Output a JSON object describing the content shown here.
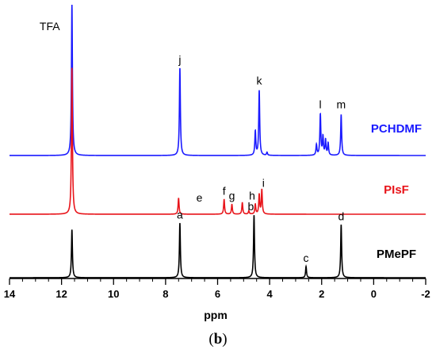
{
  "chart_data": {
    "type": "line",
    "xlabel": "ppm",
    "xlim": [
      14,
      -2
    ],
    "x_ticks": [
      14,
      12,
      10,
      8,
      6,
      4,
      2,
      0,
      -2
    ],
    "y_axis_visible": false,
    "grid": false,
    "series": [
      {
        "name": "PCHDMF",
        "color": "#1a1aff",
        "peaks": [
          {
            "ppm": 11.6,
            "height": 1.0,
            "label": "TFA"
          },
          {
            "ppm": 7.45,
            "height": 0.58,
            "label": "j"
          },
          {
            "ppm": 4.55,
            "height": 0.16,
            "label": ""
          },
          {
            "ppm": 4.4,
            "height": 0.43,
            "label": "k"
          },
          {
            "ppm": 4.1,
            "height": 0.02,
            "label": ""
          },
          {
            "ppm": 2.2,
            "height": 0.07,
            "label": ""
          },
          {
            "ppm": 2.05,
            "height": 0.27,
            "label": "l"
          },
          {
            "ppm": 1.95,
            "height": 0.12,
            "label": ""
          },
          {
            "ppm": 1.85,
            "height": 0.1,
            "label": ""
          },
          {
            "ppm": 1.75,
            "height": 0.08,
            "label": ""
          },
          {
            "ppm": 1.25,
            "height": 0.27,
            "label": "m"
          }
        ]
      },
      {
        "name": "PIsF",
        "color": "#e8141a",
        "peaks": [
          {
            "ppm": 11.6,
            "height": 0.9,
            "label": ""
          },
          {
            "ppm": 7.5,
            "height": 0.1,
            "label": ""
          },
          {
            "ppm": 6.7,
            "height": 0.0,
            "label": "e"
          },
          {
            "ppm": 5.75,
            "height": 0.09,
            "label": "f"
          },
          {
            "ppm": 5.45,
            "height": 0.06,
            "label": "g"
          },
          {
            "ppm": 5.05,
            "height": 0.07,
            "label": ""
          },
          {
            "ppm": 4.8,
            "height": 0.02,
            "label": ""
          },
          {
            "ppm": 4.55,
            "height": 0.06,
            "label": "h"
          },
          {
            "ppm": 4.4,
            "height": 0.12,
            "label": ""
          },
          {
            "ppm": 4.3,
            "height": 0.15,
            "label": "i"
          }
        ]
      },
      {
        "name": "PMePF",
        "color": "#000000",
        "peaks": [
          {
            "ppm": 11.6,
            "height": 0.3,
            "label": ""
          },
          {
            "ppm": 7.45,
            "height": 0.34,
            "label": "a"
          },
          {
            "ppm": 4.6,
            "height": 0.39,
            "label": "b"
          },
          {
            "ppm": 2.6,
            "height": 0.07,
            "label": "c"
          },
          {
            "ppm": 1.25,
            "height": 0.33,
            "label": "d"
          }
        ]
      }
    ],
    "caption_letter": "b"
  }
}
